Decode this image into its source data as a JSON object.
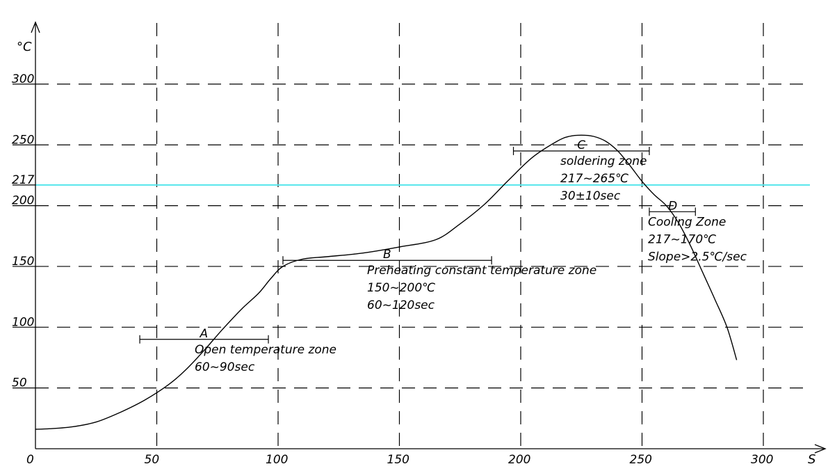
{
  "chart_data": {
    "type": "line",
    "x_unit": "S",
    "y_unit": "°C",
    "xlim": [
      0,
      325
    ],
    "ylim": [
      0,
      345
    ],
    "x_ticks": [
      0,
      50,
      100,
      150,
      200,
      250,
      300
    ],
    "y_ticks": [
      50,
      100,
      150,
      200,
      217,
      250,
      300
    ],
    "grid": true,
    "reference_line": {
      "y": 217,
      "color": "#55e6ec"
    },
    "series": [
      {
        "x": [
          0,
          6,
          15,
          25,
          35,
          45,
          55,
          62,
          70,
          77,
          85,
          92,
          97,
          102,
          110,
          120,
          135,
          150,
          165,
          175,
          185,
          195,
          205,
          215,
          220,
          225,
          230,
          235,
          240,
          245,
          250,
          255,
          260,
          265,
          270,
          275,
          280,
          285,
          289
        ],
        "y": [
          16,
          16.5,
          18,
          22,
          30,
          40,
          53,
          65,
          82,
          98,
          115,
          128,
          140,
          150,
          156,
          158,
          161,
          166,
          172,
          185,
          201,
          221,
          240,
          253,
          257,
          258,
          257,
          253,
          245,
          233,
          220,
          209,
          200,
          186,
          167,
          145,
          123,
          100,
          73
        ]
      }
    ],
    "annotations": [
      {
        "letter": "A",
        "x_from": 43,
        "x_to": 96,
        "y": 90,
        "lines": [
          "Open temperature zone",
          "60~90sec"
        ]
      },
      {
        "letter": "B",
        "x_from": 102,
        "x_to": 188,
        "y": 155,
        "lines": [
          "Preheating constant temperature zone",
          "150~200℃",
          "60~120sec"
        ]
      },
      {
        "letter": "C",
        "x_from": 197,
        "x_to": 253,
        "y": 245,
        "lines": [
          "soldering zone",
          "217~265℃",
          "30±10sec"
        ]
      },
      {
        "letter": "D",
        "x_from": 253,
        "x_to": 272,
        "y": 195,
        "lines": [
          "Cooling Zone",
          "217~170℃",
          "Slope>2.5℃/sec"
        ]
      }
    ]
  }
}
